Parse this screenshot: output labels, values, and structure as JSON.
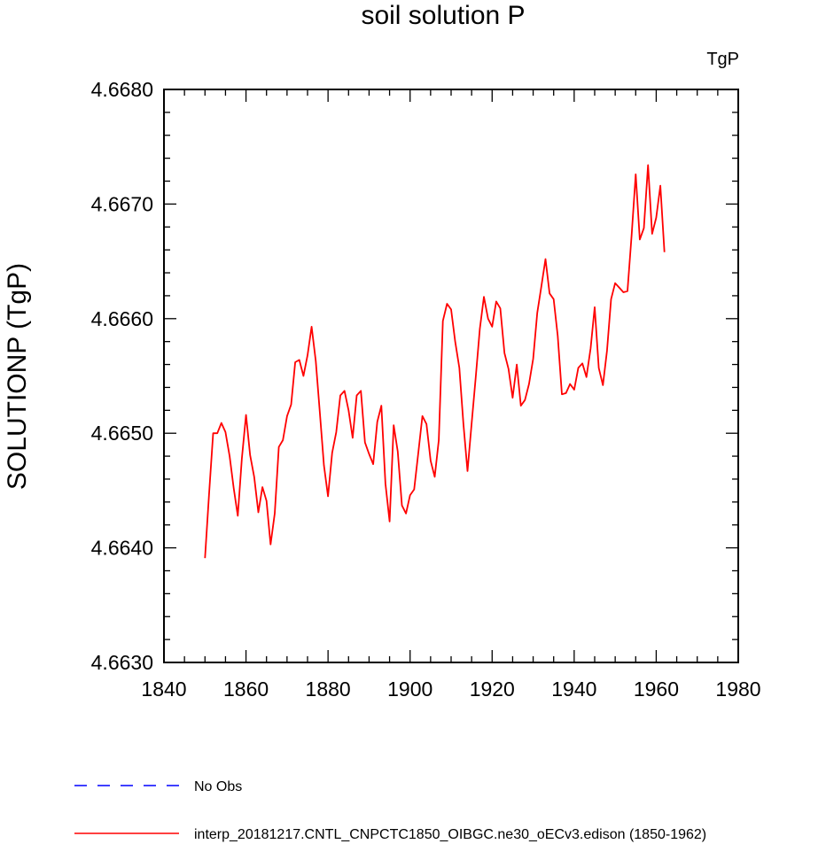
{
  "chart_data": {
    "type": "line",
    "title": "soil solution P",
    "ylabel": "SOLUTIONP  (TgP)",
    "unit_label": "TgP",
    "xlim": [
      1840,
      1980
    ],
    "ylim": [
      4.663,
      4.668
    ],
    "xticks": [
      1840,
      1860,
      1880,
      1900,
      1920,
      1940,
      1960,
      1980
    ],
    "yticks": [
      4.663,
      4.664,
      4.665,
      4.666,
      4.667,
      4.668
    ],
    "xtick_labels": [
      "1840",
      "1860",
      "1880",
      "1900",
      "1920",
      "1940",
      "1960",
      "1980"
    ],
    "ytick_labels": [
      "4.6630",
      "4.6640",
      "4.6650",
      "4.6660",
      "4.6670",
      "4.6680"
    ],
    "legend": [
      {
        "label": "No Obs",
        "color": "#0000ff",
        "style": "dashed"
      },
      {
        "label": "interp_20181217.CNTL_CNPCTC1850_OIBGC.ne30_oECv3.edison (1850-1962)",
        "color": "#ff0000",
        "style": "solid"
      }
    ],
    "series": [
      {
        "name": "interp_20181217.CNTL_CNPCTC1850_OIBGC.ne30_oECv3.edison (1850-1962)",
        "color": "#ff0000",
        "x": [
          1850,
          1851,
          1852,
          1853,
          1854,
          1855,
          1856,
          1857,
          1858,
          1859,
          1860,
          1861,
          1862,
          1863,
          1864,
          1865,
          1866,
          1867,
          1868,
          1869,
          1870,
          1871,
          1872,
          1873,
          1874,
          1875,
          1876,
          1877,
          1878,
          1879,
          1880,
          1881,
          1882,
          1883,
          1884,
          1885,
          1886,
          1887,
          1888,
          1889,
          1890,
          1891,
          1892,
          1893,
          1894,
          1895,
          1896,
          1897,
          1898,
          1899,
          1900,
          1901,
          1902,
          1903,
          1904,
          1905,
          1906,
          1907,
          1908,
          1909,
          1910,
          1911,
          1912,
          1913,
          1914,
          1915,
          1916,
          1917,
          1918,
          1919,
          1920,
          1921,
          1922,
          1923,
          1924,
          1925,
          1926,
          1927,
          1928,
          1929,
          1930,
          1931,
          1932,
          1933,
          1934,
          1935,
          1936,
          1937,
          1938,
          1939,
          1940,
          1941,
          1942,
          1943,
          1944,
          1945,
          1946,
          1947,
          1948,
          1949,
          1950,
          1951,
          1952,
          1953,
          1954,
          1955,
          1956,
          1957,
          1958,
          1959,
          1960,
          1961,
          1962
        ],
        "y": [
          4.66391,
          4.66447,
          4.665,
          4.665,
          4.66509,
          4.66501,
          4.6648,
          4.66452,
          4.66428,
          4.66478,
          4.66516,
          4.66481,
          4.66462,
          4.66431,
          4.66453,
          4.66441,
          4.66403,
          4.6643,
          4.66488,
          4.66494,
          4.66515,
          4.66525,
          4.66562,
          4.66564,
          4.6655,
          4.66568,
          4.66593,
          4.66563,
          4.66518,
          4.66472,
          4.66445,
          4.66483,
          4.66501,
          4.66533,
          4.66537,
          4.6652,
          4.66496,
          4.66533,
          4.66537,
          4.66492,
          4.66482,
          4.66473,
          4.6651,
          4.66524,
          4.66456,
          4.66423,
          4.66507,
          4.66484,
          4.66437,
          4.6643,
          4.66446,
          4.66451,
          4.66483,
          4.66515,
          4.66508,
          4.66476,
          4.66462,
          4.66494,
          4.66598,
          4.66613,
          4.66608,
          4.6658,
          4.66557,
          4.66508,
          4.66467,
          4.66508,
          4.66549,
          4.66591,
          4.66619,
          4.666,
          4.66593,
          4.66615,
          4.66609,
          4.6657,
          4.66556,
          4.66531,
          4.6656,
          4.66524,
          4.66529,
          4.66543,
          4.66565,
          4.66605,
          4.66628,
          4.66652,
          4.66622,
          4.66617,
          4.66585,
          4.66534,
          4.66535,
          4.66543,
          4.66538,
          4.66557,
          4.66561,
          4.66549,
          4.66574,
          4.6661,
          4.66557,
          4.66542,
          4.66572,
          4.66617,
          4.66631,
          4.66627,
          4.66623,
          4.66624,
          4.66673,
          4.66726,
          4.66669,
          4.66679,
          4.66734,
          4.66674,
          4.66688,
          4.66716,
          4.66658
        ]
      }
    ]
  }
}
